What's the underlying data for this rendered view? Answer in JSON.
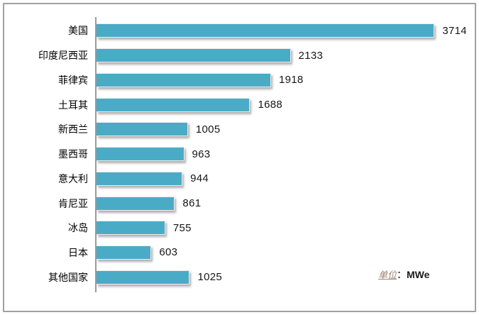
{
  "frame": {
    "background": "#ffffff",
    "border_color": "#a0a0a0"
  },
  "colors": {
    "bar": "#4aabc6",
    "axis_line": "#9b9b9b",
    "category_text": "#000000",
    "value_text": "#161616",
    "unit_prefix_text": "#9c8074"
  },
  "chart_data": {
    "type": "bar",
    "orientation": "horizontal",
    "title": "",
    "xlabel": "",
    "ylabel": "",
    "categories": [
      "美国",
      "印度尼西亚",
      "菲律宾",
      "土耳其",
      "新西兰",
      "墨西哥",
      "意大利",
      "肯尼亚",
      "冰岛",
      "日本",
      "其他国家"
    ],
    "values": [
      3714,
      2133,
      1918,
      1688,
      1005,
      963,
      944,
      861,
      755,
      603,
      1025
    ],
    "xlim": [
      0,
      4000
    ],
    "grid": false,
    "legend": "none",
    "data_labels_shown": true,
    "unit_note": {
      "prefix": "单位",
      "separator": "：",
      "unit": "MWe"
    }
  }
}
